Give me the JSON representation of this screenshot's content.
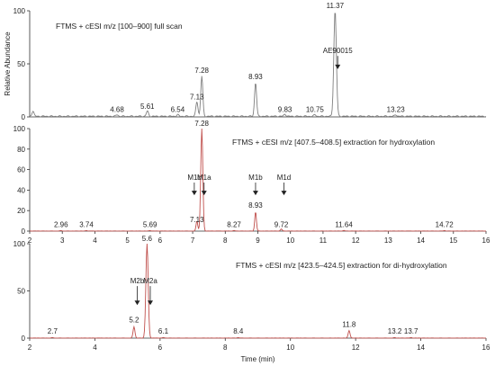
{
  "chart_data": [
    {
      "type": "line",
      "title": "FTMS + cESI m/z [100–900] full scan",
      "ylabel": "Relative Abundance",
      "xlim": [
        2,
        16
      ],
      "ylim": [
        0,
        100
      ],
      "yticks": [
        "0",
        "50",
        "100"
      ],
      "line_color": "#808080",
      "peaks": [
        {
          "x": 2.1,
          "y": 5
        },
        {
          "x": 4.68,
          "y": 1.5
        },
        {
          "x": 5.61,
          "y": 5
        },
        {
          "x": 6.54,
          "y": 1.5
        },
        {
          "x": 7.13,
          "y": 14
        },
        {
          "x": 7.28,
          "y": 38
        },
        {
          "x": 8.93,
          "y": 32
        },
        {
          "x": 9.83,
          "y": 2
        },
        {
          "x": 10.75,
          "y": 1.5
        },
        {
          "x": 11.37,
          "y": 100
        },
        {
          "x": 13.23,
          "y": 1.5
        }
      ],
      "labels": [
        {
          "x": 4.68,
          "y": 3,
          "text": "4.68"
        },
        {
          "x": 5.61,
          "y": 6,
          "text": "5.61"
        },
        {
          "x": 6.54,
          "y": 3,
          "text": "6.54"
        },
        {
          "x": 7.13,
          "y": 15,
          "text": "7.13"
        },
        {
          "x": 7.28,
          "y": 40,
          "text": "7.28"
        },
        {
          "x": 8.93,
          "y": 34,
          "text": "8.93"
        },
        {
          "x": 9.83,
          "y": 3,
          "text": "9.83"
        },
        {
          "x": 10.75,
          "y": 3,
          "text": "10.75"
        },
        {
          "x": 11.37,
          "y": 101,
          "text": "11.37"
        },
        {
          "x": 13.23,
          "y": 3,
          "text": "13.23"
        }
      ],
      "arrows": [
        {
          "text": "AE90015",
          "x": 11.45,
          "text_y": 60,
          "tip_y": 45
        }
      ]
    },
    {
      "type": "line",
      "title": "FTMS + cESI m/z [407.5–408.5] extraction for hydroxylation",
      "xlim": [
        2,
        16
      ],
      "ylim": [
        0,
        100
      ],
      "yticks": [
        "0",
        "20",
        "40",
        "60",
        "80",
        "100"
      ],
      "xticks": [
        "2",
        "3",
        "4",
        "5",
        "6",
        "7",
        "8",
        "9",
        "10",
        "11",
        "12",
        "13",
        "14",
        "15",
        "16"
      ],
      "line_color": "#c0504d",
      "peaks": [
        {
          "x": 2.96,
          "y": 0.5
        },
        {
          "x": 3.74,
          "y": 0.5
        },
        {
          "x": 5.69,
          "y": 0.5
        },
        {
          "x": 7.13,
          "y": 10
        },
        {
          "x": 7.28,
          "y": 100
        },
        {
          "x": 8.27,
          "y": 0.5
        },
        {
          "x": 8.93,
          "y": 19
        },
        {
          "x": 9.72,
          "y": 2
        },
        {
          "x": 11.64,
          "y": 0.5
        },
        {
          "x": 14.72,
          "y": 0.5
        }
      ],
      "labels": [
        {
          "x": 2.96,
          "y": 2,
          "text": "2.96"
        },
        {
          "x": 3.74,
          "y": 2,
          "text": "3.74"
        },
        {
          "x": 5.69,
          "y": 2,
          "text": "5.69"
        },
        {
          "x": 7.13,
          "y": 7,
          "text": "7.13"
        },
        {
          "x": 7.28,
          "y": 101,
          "text": "7.28"
        },
        {
          "x": 8.27,
          "y": 2,
          "text": "8.27"
        },
        {
          "x": 8.93,
          "y": 21,
          "text": "8.93"
        },
        {
          "x": 9.72,
          "y": 2,
          "text": "9.72"
        },
        {
          "x": 11.64,
          "y": 2,
          "text": "11.64"
        },
        {
          "x": 14.72,
          "y": 2,
          "text": "14.72"
        }
      ],
      "arrows": [
        {
          "text": "M1c",
          "x": 7.05,
          "text_y": 50,
          "tip_y": 35
        },
        {
          "text": "M1a",
          "x": 7.35,
          "text_y": 50,
          "tip_y": 35
        },
        {
          "text": "M1b",
          "x": 8.93,
          "text_y": 50,
          "tip_y": 35
        },
        {
          "text": "M1d",
          "x": 9.8,
          "text_y": 50,
          "tip_y": 35
        }
      ]
    },
    {
      "type": "line",
      "title": "FTMS + cESI m/z [423.5–424.5] extraction for di-hydroxylation",
      "xlabel": "Time (min)",
      "xlim": [
        2,
        16
      ],
      "ylim": [
        0,
        100
      ],
      "yticks": [
        "0",
        "50",
        "100"
      ],
      "xticks": [
        "2",
        "4",
        "6",
        "8",
        "10",
        "12",
        "14",
        "16"
      ],
      "line_color": "#c0504d",
      "peaks": [
        {
          "x": 2.7,
          "y": 0.5
        },
        {
          "x": 5.2,
          "y": 12
        },
        {
          "x": 5.6,
          "y": 100
        },
        {
          "x": 6.1,
          "y": 0.5
        },
        {
          "x": 8.4,
          "y": 0.5
        },
        {
          "x": 11.8,
          "y": 8
        },
        {
          "x": 13.2,
          "y": 0.5
        },
        {
          "x": 13.7,
          "y": 0.5
        }
      ],
      "labels": [
        {
          "x": 2.7,
          "y": 3,
          "text": "2.7"
        },
        {
          "x": 5.2,
          "y": 15,
          "text": "5.2"
        },
        {
          "x": 5.6,
          "y": 101,
          "text": "5.6"
        },
        {
          "x": 6.1,
          "y": 3,
          "text": "6.1"
        },
        {
          "x": 8.4,
          "y": 3,
          "text": "8.4"
        },
        {
          "x": 11.8,
          "y": 10,
          "text": "11.8"
        },
        {
          "x": 13.2,
          "y": 3,
          "text": "13.2"
        },
        {
          "x": 13.7,
          "y": 3,
          "text": "13.7"
        }
      ],
      "arrows": [
        {
          "text": "M2b",
          "x": 5.3,
          "text_y": 58,
          "tip_y": 35
        },
        {
          "text": "M2a",
          "x": 5.7,
          "text_y": 58,
          "tip_y": 35
        }
      ]
    }
  ]
}
